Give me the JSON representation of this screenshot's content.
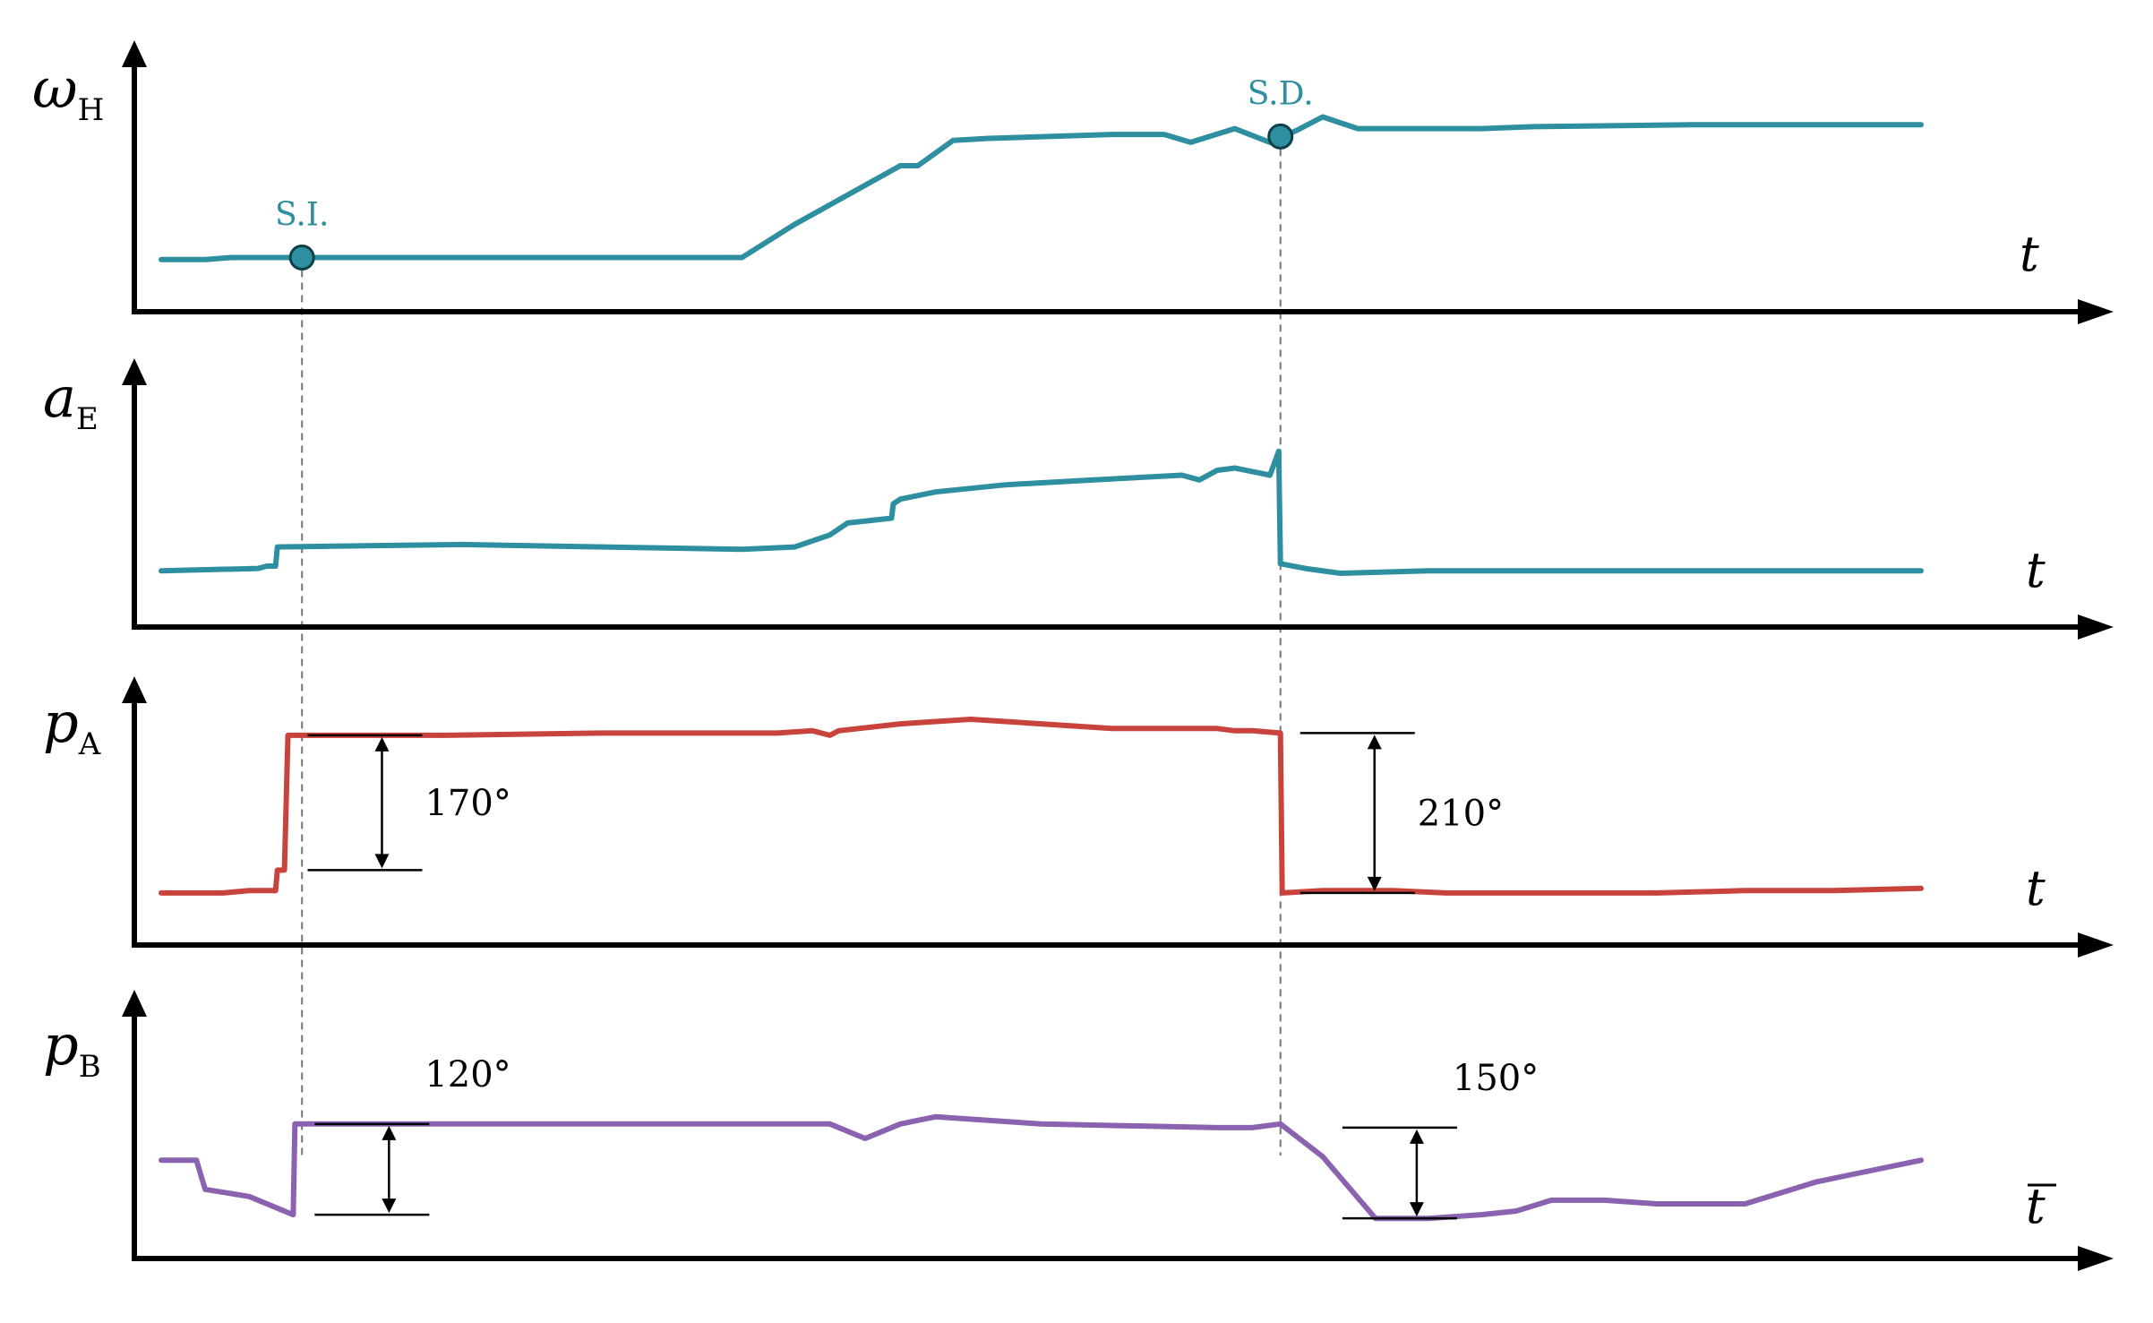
{
  "colors": {
    "teal": "#2e8fa0",
    "red": "#c8433b",
    "purple": "#8a62b0",
    "axis": "#000000",
    "guide": "#777777"
  },
  "chart_data": [
    {
      "type": "line",
      "panel": "omega_H",
      "ylabel": {
        "main": "ω",
        "sub": "H"
      },
      "xlabel": "t",
      "series": [
        {
          "color": "teal",
          "points": [
            [
              0,
              0.13
            ],
            [
              0.025,
              0.13
            ],
            [
              0.04,
              0.14
            ],
            [
              0.09,
              0.14
            ],
            [
              0.33,
              0.14
            ],
            [
              0.36,
              0.31
            ],
            [
              0.42,
              0.61
            ],
            [
              0.43,
              0.61
            ],
            [
              0.45,
              0.74
            ],
            [
              0.47,
              0.75
            ],
            [
              0.54,
              0.77
            ],
            [
              0.57,
              0.77
            ],
            [
              0.585,
              0.73
            ],
            [
              0.61,
              0.8
            ],
            [
              0.63,
              0.73
            ],
            [
              0.645,
              0.79
            ],
            [
              0.66,
              0.86
            ],
            [
              0.67,
              0.83
            ],
            [
              0.68,
              0.8
            ],
            [
              0.75,
              0.8
            ],
            [
              0.78,
              0.81
            ],
            [
              0.87,
              0.82
            ],
            [
              1.0,
              0.82
            ]
          ]
        }
      ],
      "markers": [
        {
          "label": "S.I.",
          "x": 0.08,
          "y": 0.14
        },
        {
          "label": "S.D.",
          "x": 0.636,
          "y": 0.76
        }
      ]
    },
    {
      "type": "line",
      "panel": "a_E",
      "ylabel": {
        "main": "a",
        "sub": "E"
      },
      "xlabel": "t",
      "series": [
        {
          "color": "teal",
          "points": [
            [
              0,
              0.13
            ],
            [
              0.055,
              0.14
            ],
            [
              0.06,
              0.15
            ],
            [
              0.065,
              0.15
            ],
            [
              0.066,
              0.23
            ],
            [
              0.17,
              0.24
            ],
            [
              0.33,
              0.22
            ],
            [
              0.36,
              0.23
            ],
            [
              0.38,
              0.28
            ],
            [
              0.39,
              0.33
            ],
            [
              0.415,
              0.35
            ],
            [
              0.416,
              0.41
            ],
            [
              0.42,
              0.43
            ],
            [
              0.44,
              0.46
            ],
            [
              0.48,
              0.49
            ],
            [
              0.53,
              0.51
            ],
            [
              0.58,
              0.53
            ],
            [
              0.59,
              0.51
            ],
            [
              0.6,
              0.55
            ],
            [
              0.61,
              0.56
            ],
            [
              0.63,
              0.53
            ],
            [
              0.635,
              0.63
            ],
            [
              0.636,
              0.16
            ],
            [
              0.65,
              0.14
            ],
            [
              0.67,
              0.12
            ],
            [
              0.72,
              0.13
            ],
            [
              0.8,
              0.13
            ],
            [
              0.86,
              0.13
            ],
            [
              0.9,
              0.13
            ],
            [
              1.0,
              0.13
            ]
          ]
        }
      ]
    },
    {
      "type": "line",
      "panel": "p_A",
      "ylabel": {
        "main": "p",
        "sub": "A"
      },
      "xlabel": "t",
      "series": [
        {
          "color": "red",
          "points": [
            [
              0,
              0.13
            ],
            [
              0.02,
              0.13
            ],
            [
              0.035,
              0.13
            ],
            [
              0.05,
              0.14
            ],
            [
              0.065,
              0.14
            ],
            [
              0.066,
              0.23
            ],
            [
              0.07,
              0.23
            ],
            [
              0.072,
              0.82
            ],
            [
              0.1,
              0.82
            ],
            [
              0.16,
              0.82
            ],
            [
              0.25,
              0.83
            ],
            [
              0.35,
              0.83
            ],
            [
              0.37,
              0.84
            ],
            [
              0.38,
              0.82
            ],
            [
              0.385,
              0.84
            ],
            [
              0.42,
              0.87
            ],
            [
              0.46,
              0.89
            ],
            [
              0.5,
              0.87
            ],
            [
              0.54,
              0.85
            ],
            [
              0.6,
              0.85
            ],
            [
              0.61,
              0.84
            ],
            [
              0.62,
              0.84
            ],
            [
              0.636,
              0.83
            ],
            [
              0.637,
              0.13
            ],
            [
              0.66,
              0.14
            ],
            [
              0.7,
              0.14
            ],
            [
              0.73,
              0.13
            ],
            [
              0.78,
              0.13
            ],
            [
              0.85,
              0.13
            ],
            [
              0.9,
              0.14
            ],
            [
              0.95,
              0.14
            ],
            [
              1.0,
              0.15
            ]
          ]
        }
      ],
      "annotations": [
        {
          "label": "170°",
          "x": 0.072,
          "y_low": 0.23,
          "y_high": 0.82
        },
        {
          "label": "210°",
          "x": 0.636,
          "y_low": 0.13,
          "y_high": 0.83
        }
      ]
    },
    {
      "type": "line",
      "panel": "p_B",
      "ylabel": {
        "main": "p",
        "sub": "B"
      },
      "xlabel": "t",
      "series": [
        {
          "color": "purple",
          "points": [
            [
              0,
              0.53
            ],
            [
              0.02,
              0.53
            ],
            [
              0.025,
              0.45
            ],
            [
              0.05,
              0.43
            ],
            [
              0.075,
              0.38
            ],
            [
              0.076,
              0.63
            ],
            [
              0.1,
              0.63
            ],
            [
              0.2,
              0.63
            ],
            [
              0.3,
              0.63
            ],
            [
              0.38,
              0.63
            ],
            [
              0.4,
              0.59
            ],
            [
              0.42,
              0.63
            ],
            [
              0.44,
              0.65
            ],
            [
              0.5,
              0.63
            ],
            [
              0.6,
              0.62
            ],
            [
              0.62,
              0.62
            ],
            [
              0.636,
              0.63
            ],
            [
              0.66,
              0.54
            ],
            [
              0.69,
              0.37
            ],
            [
              0.72,
              0.37
            ],
            [
              0.75,
              0.38
            ],
            [
              0.77,
              0.39
            ],
            [
              0.79,
              0.42
            ],
            [
              0.82,
              0.42
            ],
            [
              0.85,
              0.41
            ],
            [
              0.9,
              0.41
            ],
            [
              0.94,
              0.47
            ],
            [
              0.96,
              0.49
            ],
            [
              1.0,
              0.53
            ]
          ]
        }
      ],
      "annotations": [
        {
          "label": "120°",
          "x": 0.076,
          "y_low": 0.38,
          "y_high": 0.63
        },
        {
          "label": "150°",
          "x": 0.66,
          "y_low": 0.37,
          "y_high": 0.62
        }
      ]
    }
  ]
}
